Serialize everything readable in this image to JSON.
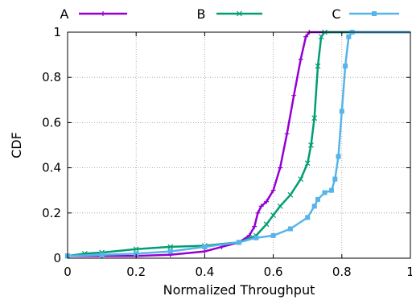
{
  "chart_data": {
    "type": "line",
    "title": "",
    "xlabel": "Normalized Throughput",
    "ylabel": "CDF",
    "xlim": [
      0,
      1
    ],
    "ylim": [
      0,
      1
    ],
    "x_ticks": [
      "0",
      "0.2",
      "0.4",
      "0.6",
      "0.8",
      "1"
    ],
    "y_ticks": [
      "0",
      "0.2",
      "0.4",
      "0.6",
      "0.8",
      "1"
    ],
    "grid": true,
    "legend_position": "top (horizontal, outside plot)",
    "series": [
      {
        "name": "A",
        "color": "#9400d3",
        "marker": "plus",
        "points": [
          [
            0,
            0.01
          ],
          [
            0.1,
            0.01
          ],
          [
            0.2,
            0.01
          ],
          [
            0.3,
            0.015
          ],
          [
            0.4,
            0.03
          ],
          [
            0.45,
            0.05
          ],
          [
            0.5,
            0.07
          ],
          [
            0.53,
            0.1
          ],
          [
            0.545,
            0.14
          ],
          [
            0.555,
            0.2
          ],
          [
            0.565,
            0.23
          ],
          [
            0.58,
            0.25
          ],
          [
            0.6,
            0.3
          ],
          [
            0.62,
            0.4
          ],
          [
            0.64,
            0.55
          ],
          [
            0.66,
            0.72
          ],
          [
            0.68,
            0.88
          ],
          [
            0.695,
            0.98
          ],
          [
            0.705,
            1.0
          ],
          [
            1.0,
            1.0
          ]
        ]
      },
      {
        "name": "B",
        "color": "#009e73",
        "marker": "cross",
        "points": [
          [
            0,
            0.01
          ],
          [
            0.05,
            0.02
          ],
          [
            0.1,
            0.025
          ],
          [
            0.2,
            0.04
          ],
          [
            0.3,
            0.05
          ],
          [
            0.4,
            0.055
          ],
          [
            0.5,
            0.07
          ],
          [
            0.55,
            0.1
          ],
          [
            0.58,
            0.15
          ],
          [
            0.6,
            0.19
          ],
          [
            0.62,
            0.23
          ],
          [
            0.65,
            0.28
          ],
          [
            0.68,
            0.35
          ],
          [
            0.7,
            0.42
          ],
          [
            0.71,
            0.5
          ],
          [
            0.72,
            0.62
          ],
          [
            0.73,
            0.85
          ],
          [
            0.74,
            0.98
          ],
          [
            0.75,
            1.0
          ],
          [
            1.0,
            1.0
          ]
        ]
      },
      {
        "name": "C",
        "color": "#56b4e9",
        "marker": "square",
        "points": [
          [
            0,
            0.01
          ],
          [
            0.1,
            0.015
          ],
          [
            0.2,
            0.02
          ],
          [
            0.3,
            0.03
          ],
          [
            0.4,
            0.05
          ],
          [
            0.5,
            0.07
          ],
          [
            0.55,
            0.09
          ],
          [
            0.6,
            0.1
          ],
          [
            0.65,
            0.13
          ],
          [
            0.7,
            0.18
          ],
          [
            0.72,
            0.23
          ],
          [
            0.73,
            0.26
          ],
          [
            0.75,
            0.29
          ],
          [
            0.77,
            0.3
          ],
          [
            0.78,
            0.35
          ],
          [
            0.79,
            0.45
          ],
          [
            0.8,
            0.65
          ],
          [
            0.81,
            0.85
          ],
          [
            0.82,
            0.98
          ],
          [
            0.83,
            1.0
          ],
          [
            1.0,
            1.0
          ]
        ]
      }
    ]
  }
}
